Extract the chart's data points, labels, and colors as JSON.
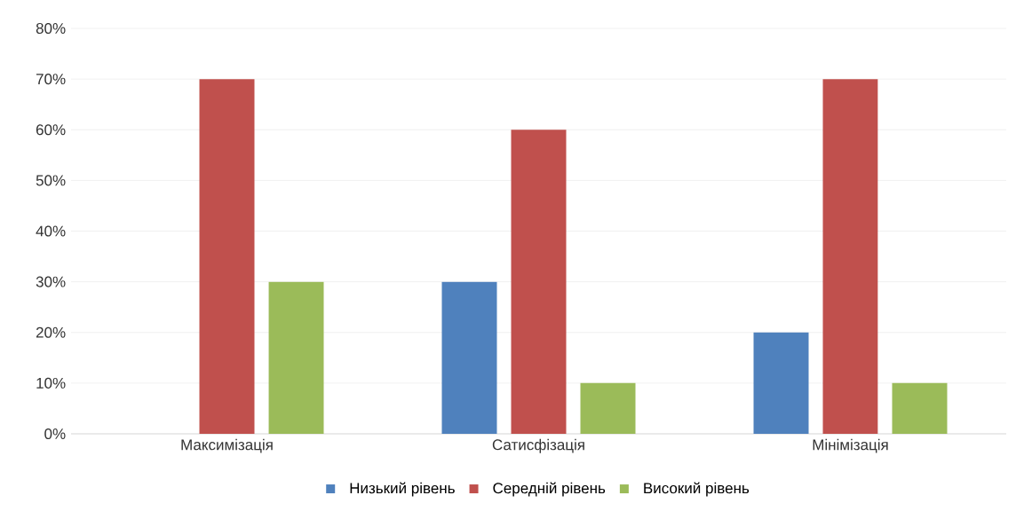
{
  "chart_data": {
    "type": "bar",
    "categories": [
      "Максимізація",
      "Сатисфізація",
      "Мінімізація"
    ],
    "series": [
      {
        "name": "Низький рівень",
        "color": "#4f81bd",
        "values": [
          0,
          30,
          20
        ]
      },
      {
        "name": "Середній рівень",
        "color": "#c0504d",
        "values": [
          70,
          60,
          70
        ]
      },
      {
        "name": "Високий рівень",
        "color": "#9bbb59",
        "values": [
          30,
          10,
          10
        ]
      }
    ],
    "ylim": [
      0,
      80
    ],
    "yticks": [
      {
        "value": 0,
        "label": "0%"
      },
      {
        "value": 10,
        "label": "10%"
      },
      {
        "value": 20,
        "label": "20%"
      },
      {
        "value": 30,
        "label": "30%"
      },
      {
        "value": 40,
        "label": "40%"
      },
      {
        "value": 50,
        "label": "50%"
      },
      {
        "value": 60,
        "label": "60%"
      },
      {
        "value": 70,
        "label": "70%"
      },
      {
        "value": 80,
        "label": "80%"
      }
    ],
    "grid": "y",
    "legend": "bottom"
  }
}
